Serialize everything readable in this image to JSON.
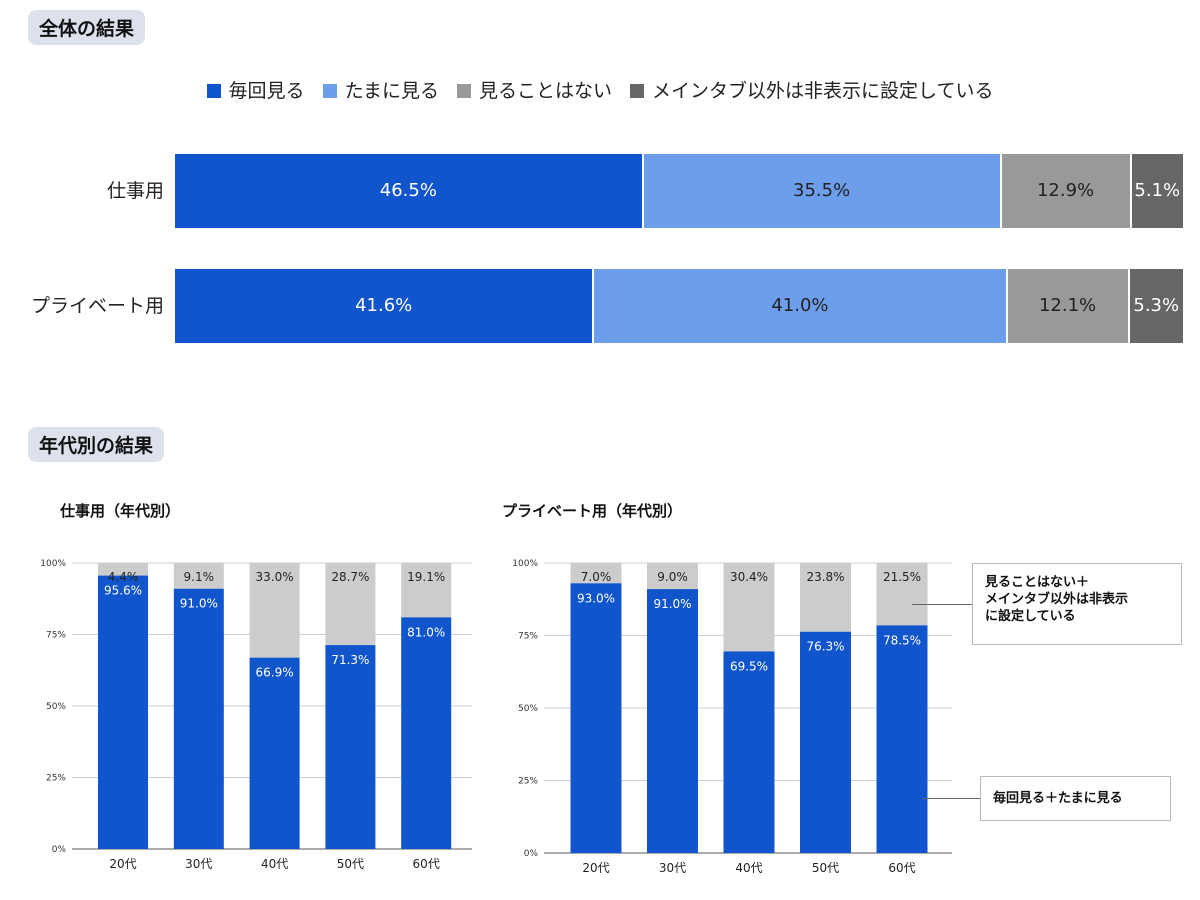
{
  "sections": {
    "overall": "全体の結果",
    "age": "年代別の結果"
  },
  "colors": {
    "every_time": "#1155cc",
    "sometimes": "#6d9eeb",
    "never": "#999999",
    "hidden": "#666666",
    "rest": "#cccccc"
  },
  "legend": [
    {
      "label": "毎回見る",
      "color": "#1155cc"
    },
    {
      "label": "たまに見る",
      "color": "#6d9eeb"
    },
    {
      "label": "見ることはない",
      "color": "#999999"
    },
    {
      "label": "メインタブ以外は非表示に設定している",
      "color": "#666666"
    }
  ],
  "chart_data": [
    {
      "type": "bar",
      "orientation": "horizontal",
      "stacked": "percent",
      "title": "",
      "legend_position": "top",
      "categories": [
        "仕事用",
        "プライベート用"
      ],
      "series": [
        {
          "name": "毎回見る",
          "values": [
            46.5,
            41.6
          ],
          "labels": [
            "46.5%",
            "41.6%"
          ]
        },
        {
          "name": "たまに見る",
          "values": [
            35.5,
            41.0
          ],
          "labels": [
            "35.5%",
            "41.0%"
          ]
        },
        {
          "name": "見ることはない",
          "values": [
            12.9,
            12.1
          ],
          "labels": [
            "12.9%",
            "12.1%"
          ]
        },
        {
          "name": "メインタブ以外は非表示に設定している",
          "values": [
            5.1,
            5.3
          ],
          "labels": [
            "5.1%",
            "5.3%"
          ]
        }
      ]
    },
    {
      "type": "bar",
      "stacked": "percent",
      "title": "仕事用（年代別）",
      "categories": [
        "20代",
        "30代",
        "40代",
        "50代",
        "60代"
      ],
      "y_ticks": [
        "0%",
        "25%",
        "50%",
        "75%",
        "100%"
      ],
      "ylim": [
        0,
        100
      ],
      "grid": true,
      "series": [
        {
          "values": [
            95.6,
            91.0,
            66.9,
            71.3,
            81.0
          ],
          "labels": [
            "95.6%",
            "91.0%",
            "66.9%",
            "71.3%",
            "81.0%"
          ]
        },
        {
          "values": [
            4.4,
            9.1,
            33.0,
            28.7,
            19.1
          ],
          "labels": [
            "4.4%",
            "9.1%",
            "33.0%",
            "28.7%",
            "19.1%"
          ]
        }
      ]
    },
    {
      "type": "bar",
      "stacked": "percent",
      "title": "プライベート用（年代別）",
      "categories": [
        "20代",
        "30代",
        "40代",
        "50代",
        "60代"
      ],
      "y_ticks": [
        "0%",
        "25%",
        "50%",
        "75%",
        "100%"
      ],
      "ylim": [
        0,
        100
      ],
      "grid": true,
      "series": [
        {
          "values": [
            93.0,
            91.0,
            69.5,
            76.3,
            78.5
          ],
          "labels": [
            "93.0%",
            "91.0%",
            "69.5%",
            "76.3%",
            "78.5%"
          ]
        },
        {
          "values": [
            7.0,
            9.0,
            30.4,
            23.8,
            21.5
          ],
          "labels": [
            "7.0%",
            "9.0%",
            "30.4%",
            "23.8%",
            "21.5%"
          ]
        }
      ],
      "annotations": [
        {
          "lines": [
            "見ることはない＋",
            "メインタブ以外は非表示",
            "に設定している"
          ]
        },
        {
          "lines": [
            "毎回見る＋たまに見る"
          ]
        }
      ]
    }
  ]
}
